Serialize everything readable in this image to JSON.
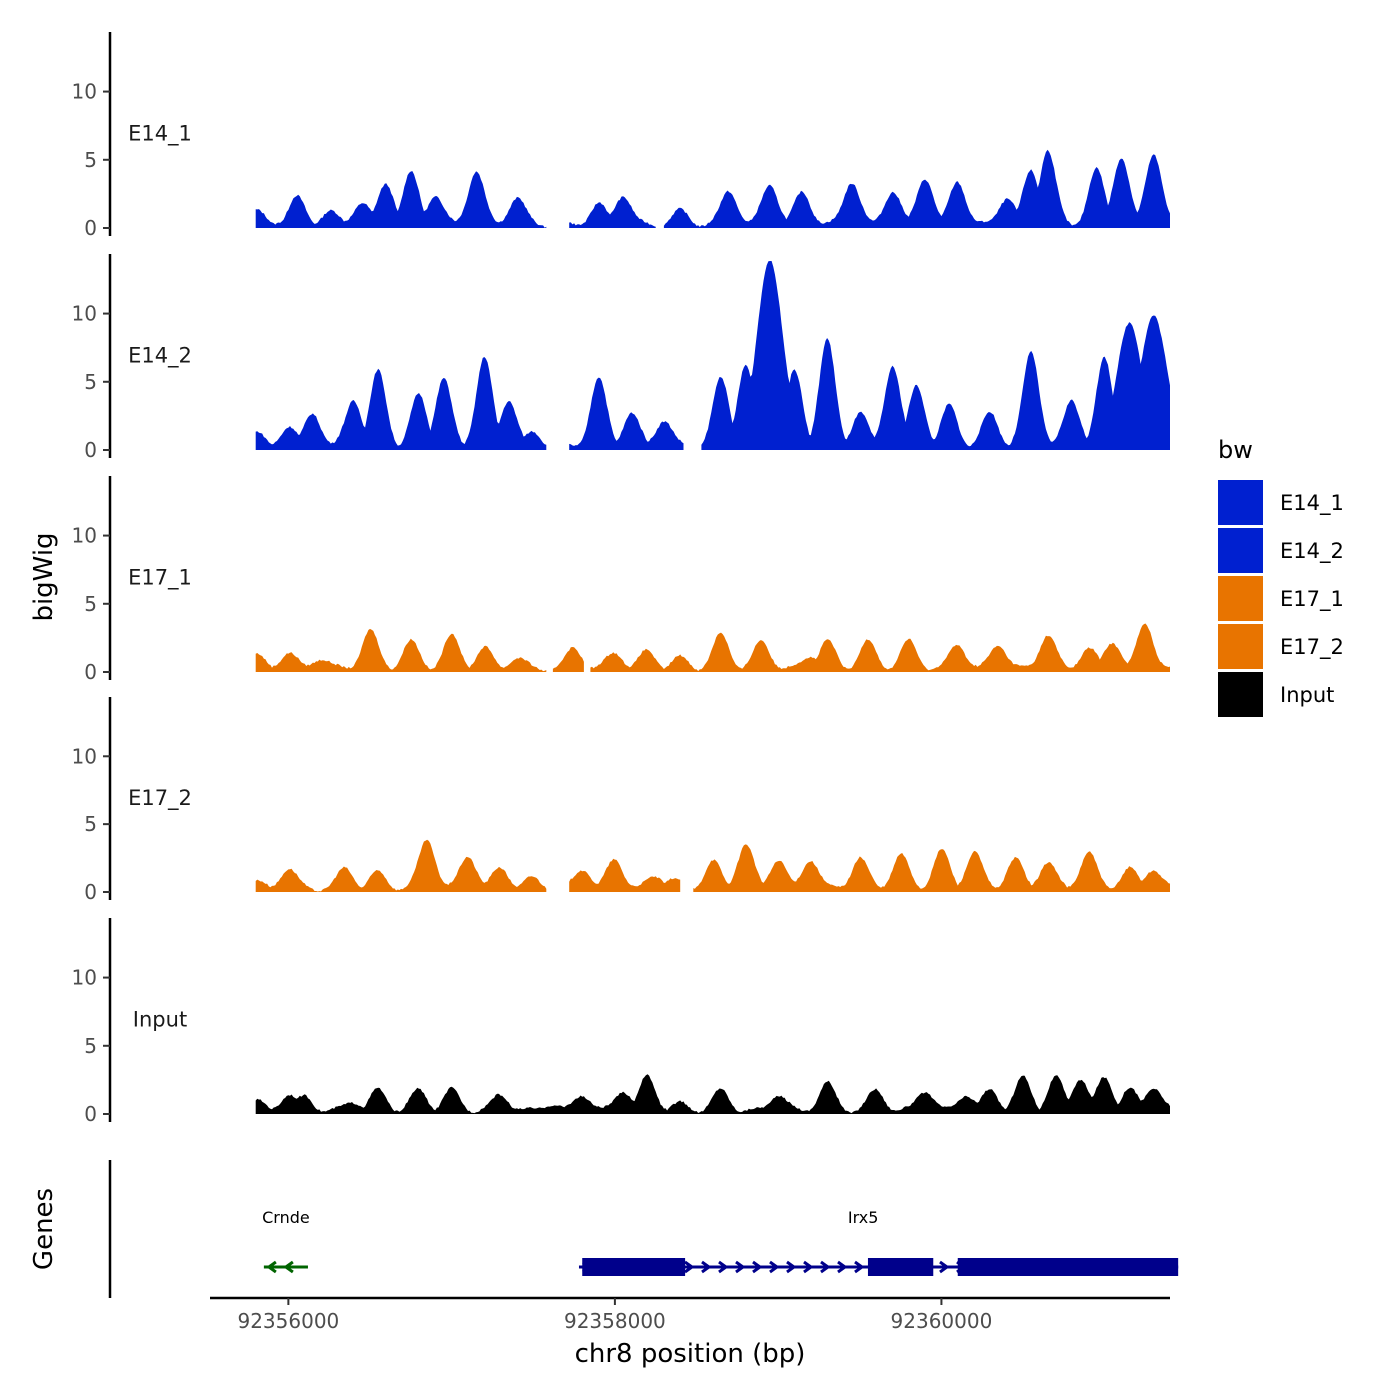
{
  "chart_data": {
    "type": "area",
    "region": {
      "chrom": "chr8",
      "start": 92355520,
      "end": 92361400
    },
    "data_range": {
      "start": 92355800,
      "end": 92361400
    },
    "xlabel": "chr8 position (bp)",
    "xticks": [
      92356000,
      92358000,
      92360000
    ],
    "xtick_labels": [
      "92356000",
      "92358000",
      "92360000"
    ],
    "ylabel": "bigWig",
    "ylim": [
      0,
      14
    ],
    "yticks": [
      0,
      5,
      10
    ],
    "ytick_labels": [
      "0",
      "5",
      "10"
    ],
    "tracks": [
      {
        "name": "E14_1",
        "color": "#0020D0",
        "gaps": [
          [
            92357580,
            92357720
          ],
          [
            92358250,
            92358300
          ]
        ],
        "peaks": [
          [
            92355800,
            1.0
          ],
          [
            92356000,
            0.6
          ],
          [
            92356050,
            2.0
          ],
          [
            92356250,
            1.0
          ],
          [
            92356450,
            1.7
          ],
          [
            92356600,
            3.0
          ],
          [
            92356750,
            3.8
          ],
          [
            92356900,
            2.2
          ],
          [
            92357150,
            4.0
          ],
          [
            92357400,
            2.0
          ],
          [
            92357900,
            1.5
          ],
          [
            92358050,
            2.2
          ],
          [
            92358400,
            1.0
          ],
          [
            92358700,
            2.5
          ],
          [
            92358950,
            3.0
          ],
          [
            92359150,
            2.4
          ],
          [
            92359450,
            3.2
          ],
          [
            92359700,
            2.5
          ],
          [
            92359900,
            3.5
          ],
          [
            92360100,
            3.2
          ],
          [
            92360400,
            2.0
          ],
          [
            92360550,
            4.0
          ],
          [
            92360650,
            5.5
          ],
          [
            92360950,
            4.0
          ],
          [
            92361100,
            5.0
          ],
          [
            92361300,
            5.3
          ]
        ]
      },
      {
        "name": "E14_2",
        "color": "#0020D0",
        "gaps": [
          [
            92357580,
            92357720
          ],
          [
            92358420,
            92358530
          ]
        ],
        "peaks": [
          [
            92355800,
            1.0
          ],
          [
            92356000,
            1.5
          ],
          [
            92356150,
            2.5
          ],
          [
            92356400,
            3.5
          ],
          [
            92356550,
            5.5
          ],
          [
            92356800,
            3.8
          ],
          [
            92356950,
            5.0
          ],
          [
            92357200,
            6.5
          ],
          [
            92357350,
            3.5
          ],
          [
            92357500,
            1.0
          ],
          [
            92357900,
            5.0
          ],
          [
            92358100,
            2.5
          ],
          [
            92358300,
            2.0
          ],
          [
            92358650,
            5.0
          ],
          [
            92358800,
            6.0
          ],
          [
            92358950,
            13.8
          ],
          [
            92359100,
            5.5
          ],
          [
            92359300,
            7.8
          ],
          [
            92359500,
            2.5
          ],
          [
            92359700,
            6.0
          ],
          [
            92359850,
            4.5
          ],
          [
            92360050,
            3.0
          ],
          [
            92360300,
            2.5
          ],
          [
            92360550,
            7.0
          ],
          [
            92360800,
            3.5
          ],
          [
            92361000,
            6.5
          ],
          [
            92361150,
            9.0
          ],
          [
            92361300,
            9.8
          ]
        ]
      },
      {
        "name": "E17_1",
        "color": "#E87400",
        "gaps": [
          [
            92357580,
            92357620
          ],
          [
            92357810,
            92357850
          ]
        ],
        "peaks": [
          [
            92355800,
            1.0
          ],
          [
            92356000,
            1.2
          ],
          [
            92356200,
            0.8
          ],
          [
            92356500,
            2.8
          ],
          [
            92356750,
            2.0
          ],
          [
            92357000,
            2.4
          ],
          [
            92357200,
            1.5
          ],
          [
            92357400,
            0.8
          ],
          [
            92357750,
            1.5
          ],
          [
            92358000,
            1.2
          ],
          [
            92358200,
            1.3
          ],
          [
            92358400,
            0.8
          ],
          [
            92358650,
            2.5
          ],
          [
            92358900,
            2.0
          ],
          [
            92359200,
            1.0
          ],
          [
            92359300,
            2.0
          ],
          [
            92359550,
            2.0
          ],
          [
            92359800,
            2.0
          ],
          [
            92360100,
            1.8
          ],
          [
            92360350,
            1.8
          ],
          [
            92360650,
            2.5
          ],
          [
            92360900,
            1.5
          ],
          [
            92361050,
            2.0
          ],
          [
            92361250,
            3.3
          ]
        ]
      },
      {
        "name": "E17_2",
        "color": "#E87400",
        "gaps": [
          [
            92357580,
            92357720
          ],
          [
            92358400,
            92358480
          ]
        ],
        "peaks": [
          [
            92355800,
            0.5
          ],
          [
            92356000,
            1.5
          ],
          [
            92356350,
            1.5
          ],
          [
            92356550,
            1.2
          ],
          [
            92356850,
            3.7
          ],
          [
            92357100,
            2.5
          ],
          [
            92357300,
            1.6
          ],
          [
            92357500,
            0.8
          ],
          [
            92357800,
            1.5
          ],
          [
            92358000,
            2.2
          ],
          [
            92358250,
            1.0
          ],
          [
            92358350,
            0.7
          ],
          [
            92358600,
            2.0
          ],
          [
            92358800,
            3.3
          ],
          [
            92359000,
            2.2
          ],
          [
            92359200,
            2.2
          ],
          [
            92359500,
            2.3
          ],
          [
            92359750,
            2.5
          ],
          [
            92360000,
            2.8
          ],
          [
            92360200,
            2.7
          ],
          [
            92360450,
            2.2
          ],
          [
            92360650,
            2.0
          ],
          [
            92360900,
            2.7
          ],
          [
            92361150,
            1.5
          ],
          [
            92361300,
            1.5
          ]
        ]
      },
      {
        "name": "Input",
        "color": "#000000",
        "gaps": [],
        "peaks": [
          [
            92355800,
            0.7
          ],
          [
            92356000,
            1.2
          ],
          [
            92356100,
            1.0
          ],
          [
            92356400,
            0.7
          ],
          [
            92356550,
            1.5
          ],
          [
            92356800,
            1.5
          ],
          [
            92357000,
            1.5
          ],
          [
            92357300,
            1.2
          ],
          [
            92357600,
            0.5
          ],
          [
            92357800,
            1.2
          ],
          [
            92358050,
            1.5
          ],
          [
            92358200,
            2.5
          ],
          [
            92358400,
            0.5
          ],
          [
            92358650,
            1.5
          ],
          [
            92359000,
            1.2
          ],
          [
            92359300,
            2.0
          ],
          [
            92359600,
            1.5
          ],
          [
            92359900,
            1.5
          ],
          [
            92360150,
            1.2
          ],
          [
            92360300,
            1.5
          ],
          [
            92360500,
            2.4
          ],
          [
            92360700,
            2.4
          ],
          [
            92360850,
            2.4
          ],
          [
            92361000,
            2.4
          ],
          [
            92361150,
            1.6
          ],
          [
            92361300,
            1.8
          ]
        ]
      }
    ],
    "genes_track": {
      "label": "Genes",
      "genes": [
        {
          "name": "Crnde",
          "strand": "-",
          "color": "#006400",
          "start": 92355850,
          "end": 92356120,
          "exons": []
        },
        {
          "name": "Irx5",
          "strand": "+",
          "color": "#00008B",
          "start": 92357780,
          "end": 92361450,
          "exons": [
            [
              92357800,
              92358430
            ],
            [
              92359550,
              92359950
            ],
            [
              92360100,
              92361450
            ]
          ]
        }
      ]
    },
    "legend": {
      "title": "bw",
      "position": "right",
      "items": [
        {
          "label": "E14_1",
          "color": "#0020D0"
        },
        {
          "label": "E14_2",
          "color": "#0020D0"
        },
        {
          "label": "E17_1",
          "color": "#E87400"
        },
        {
          "label": "E17_2",
          "color": "#E87400"
        },
        {
          "label": "Input",
          "color": "#000000"
        }
      ]
    }
  }
}
